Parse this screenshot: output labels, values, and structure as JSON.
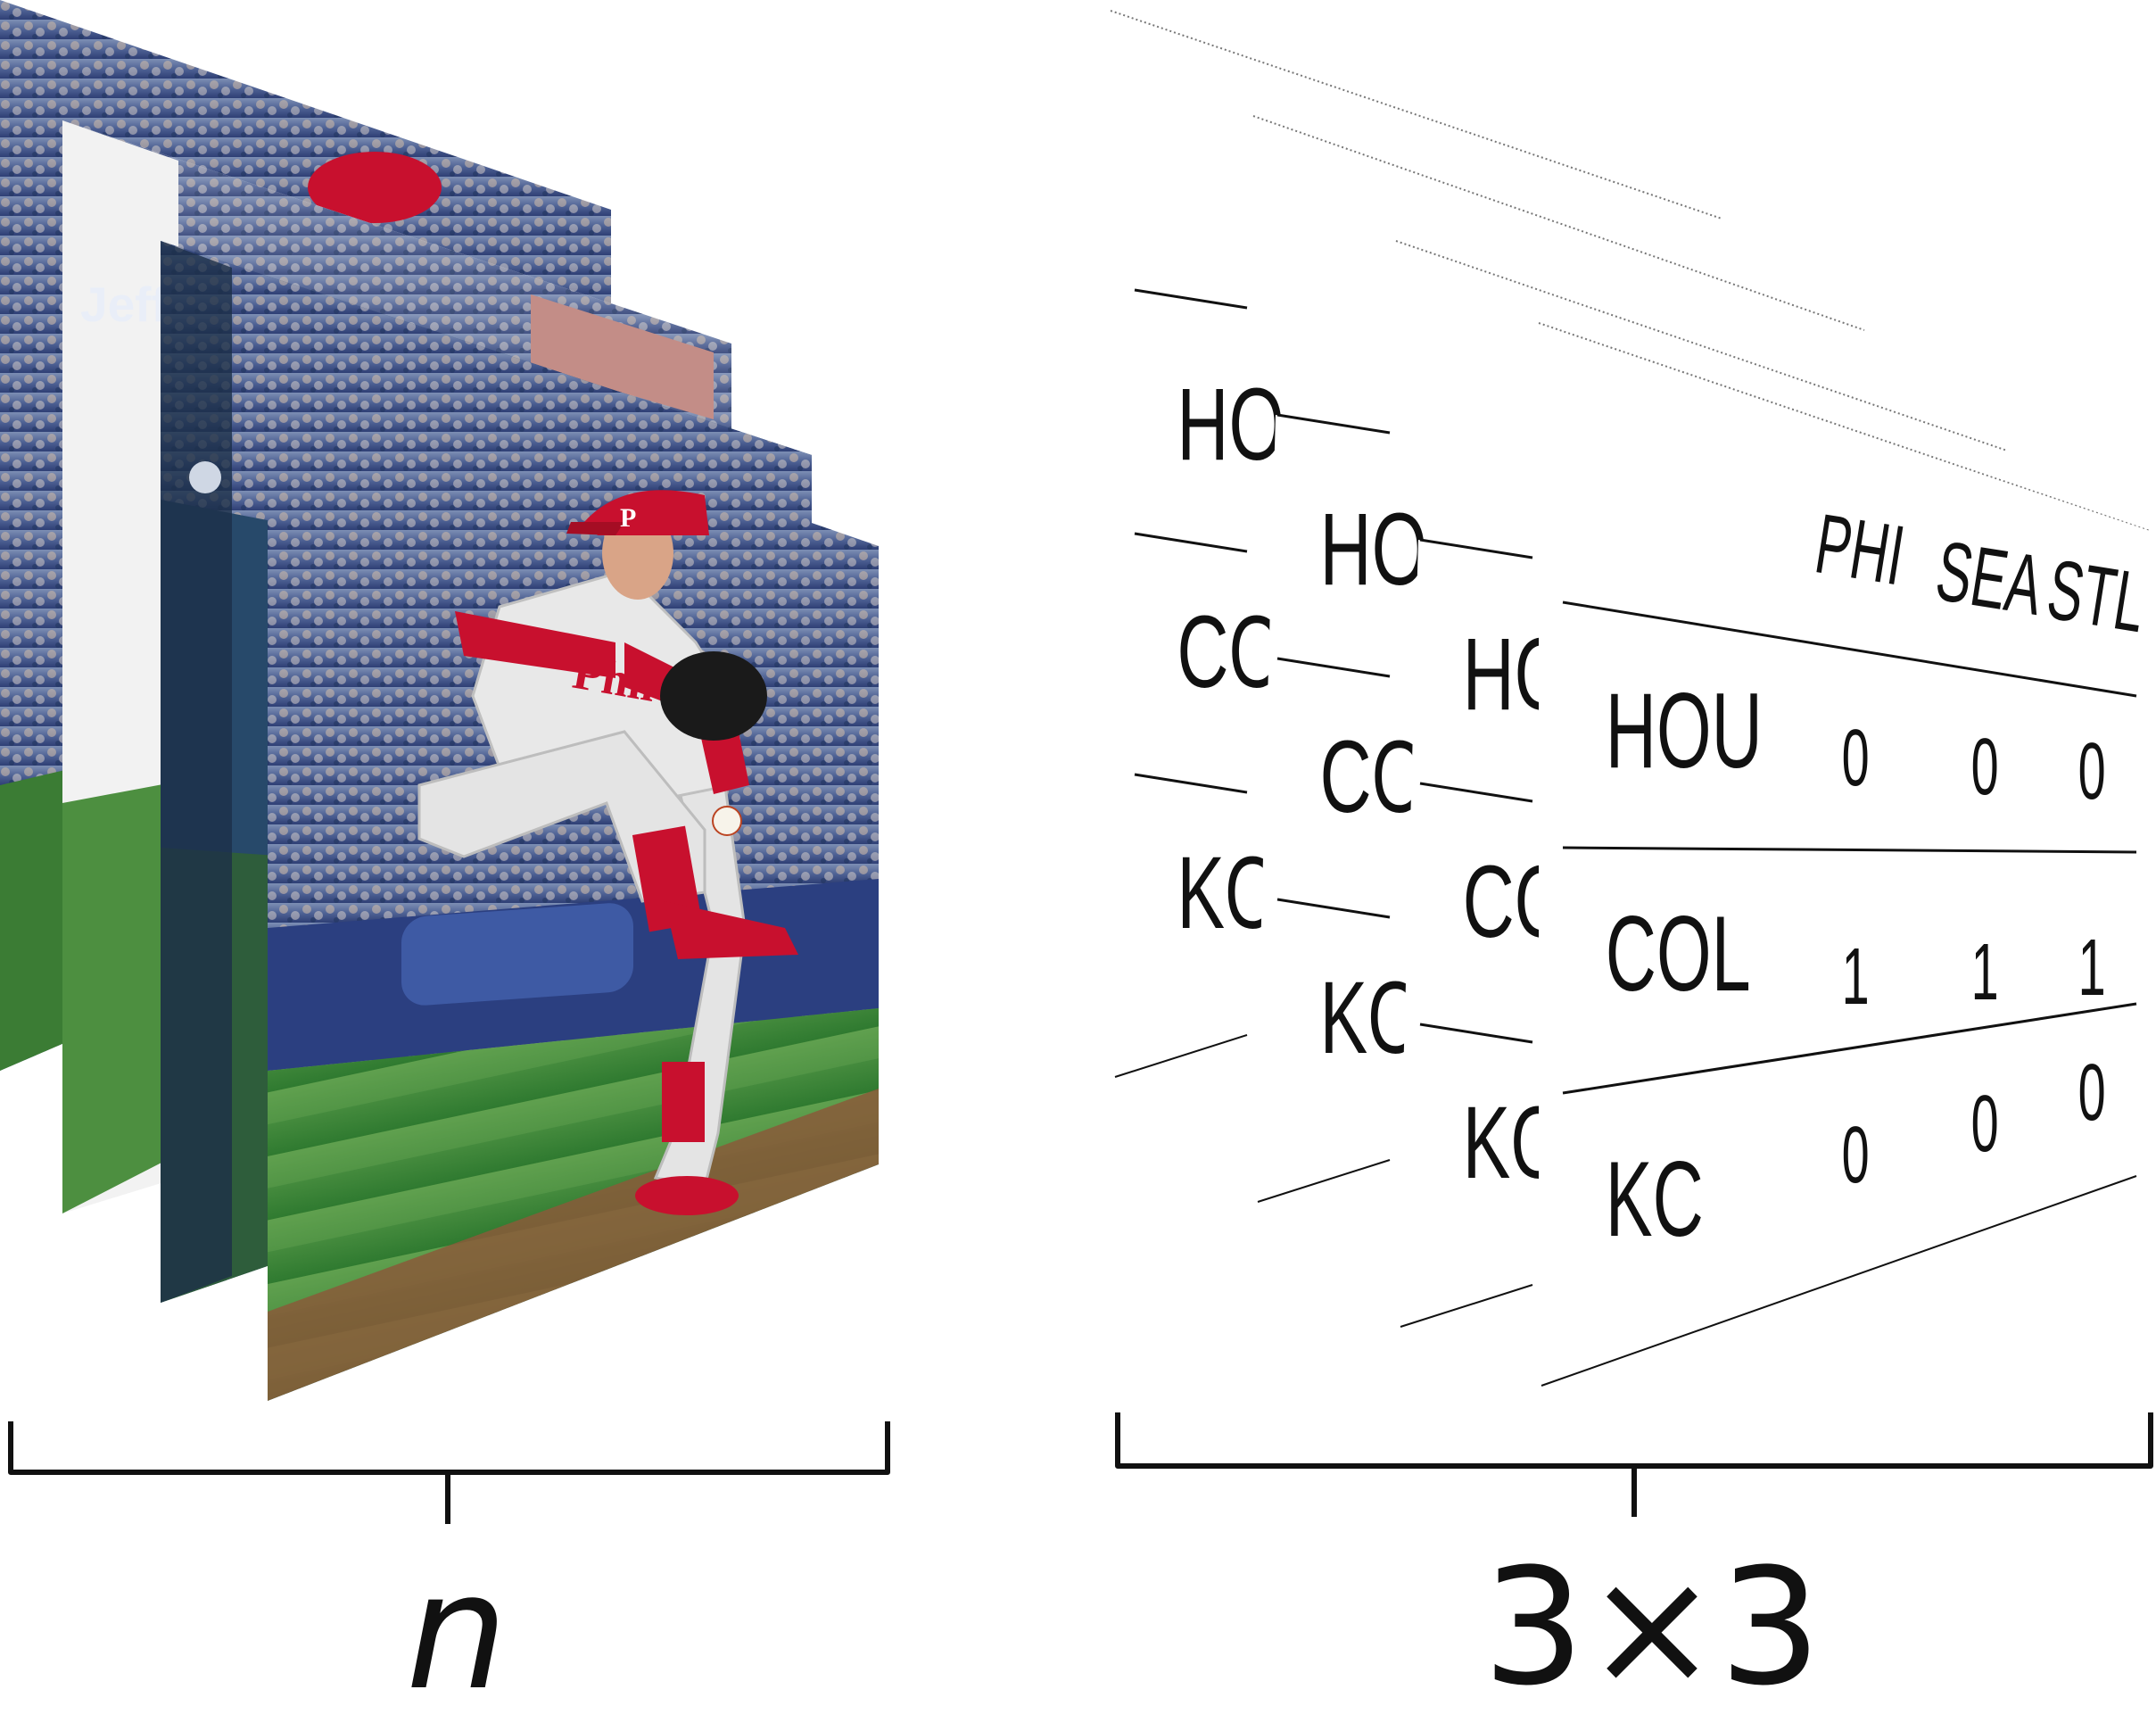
{
  "photo_stack": {
    "label": "n",
    "cards": [
      {
        "type": "photo"
      },
      {
        "type": "photo"
      },
      {
        "type": "photo"
      },
      {
        "type": "photo"
      }
    ]
  },
  "table_stack": {
    "label": "3×3",
    "back_card_rows": [
      "HO",
      "CO",
      "KO"
    ],
    "front_table": {
      "columns": [
        "PHI",
        "SEA",
        "STL"
      ],
      "rows": [
        {
          "team": "HOU",
          "values": [
            "0",
            "0",
            "0"
          ]
        },
        {
          "team": "COL",
          "values": [
            "1",
            "1",
            "1"
          ]
        },
        {
          "team": "KC",
          "values": [
            "0",
            "0",
            "0"
          ]
        }
      ],
      "hidden_header_fragment": "SEA STL"
    }
  },
  "colors": {
    "stroke": "#111111",
    "jersey": "#e6e6e6",
    "cap_red": "#c8102e",
    "grass": "#3f8a3a",
    "crowd": "#5c6c92"
  }
}
